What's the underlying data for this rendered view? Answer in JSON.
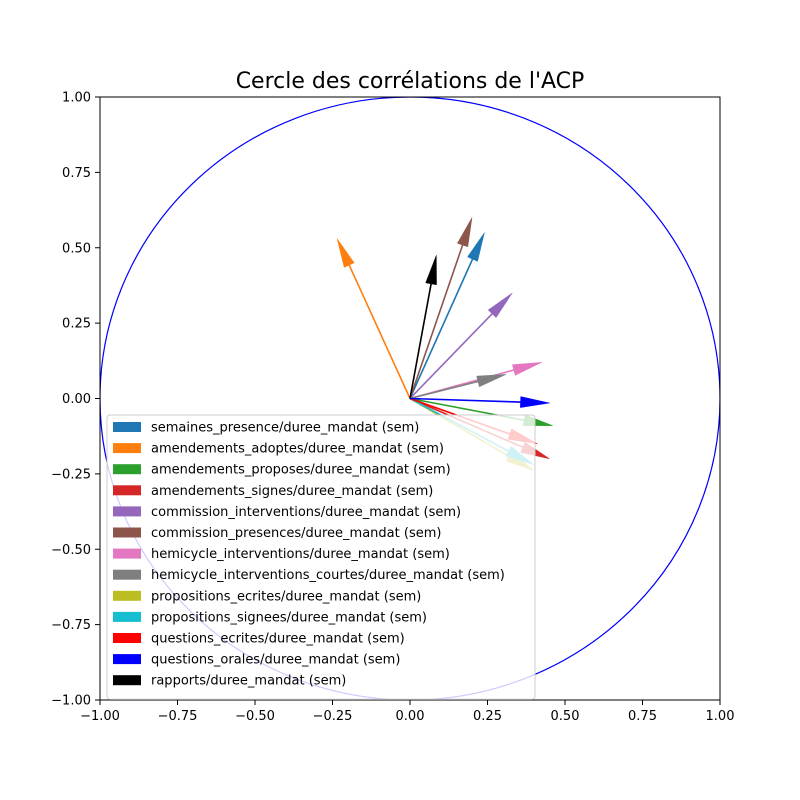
{
  "chart_data": {
    "type": "scatter",
    "title": "Cercle des corrélations de l'ACP",
    "xlabel": "",
    "ylabel": "",
    "xlim": [
      -1,
      1
    ],
    "ylim": [
      -1,
      1
    ],
    "grid": false,
    "legend_position": "lower-left",
    "circle": {
      "radius": 1,
      "color": "#0000ff"
    },
    "x_ticks": [
      "−1.00",
      "−0.75",
      "−0.50",
      "−0.25",
      "0.00",
      "0.25",
      "0.50",
      "0.75",
      "1.00"
    ],
    "y_ticks": [
      "−1.00",
      "−0.75",
      "−0.50",
      "−0.25",
      "0.00",
      "0.25",
      "0.50",
      "0.75",
      "1.00"
    ],
    "x_tick_values": [
      -1,
      -0.75,
      -0.5,
      -0.25,
      0,
      0.25,
      0.5,
      0.75,
      1
    ],
    "y_tick_values": [
      -1,
      -0.75,
      -0.5,
      -0.25,
      0,
      0.25,
      0.5,
      0.75,
      1
    ],
    "series": [
      {
        "name": "semaines_presence/duree_mandat (sem)",
        "color": "#1f77b4",
        "x": 0.24,
        "y": 0.55
      },
      {
        "name": "amendements_adoptes/duree_mandat (sem)",
        "color": "#ff7f0e",
        "x": -0.235,
        "y": 0.53
      },
      {
        "name": "amendements_proposes/duree_mandat (sem)",
        "color": "#2ca02c",
        "x": 0.46,
        "y": -0.09
      },
      {
        "name": "amendements_signes/duree_mandat (sem)",
        "color": "#d62728",
        "x": 0.45,
        "y": -0.2
      },
      {
        "name": "commission_interventions/duree_mandat (sem)",
        "color": "#9467bd",
        "x": 0.33,
        "y": 0.35
      },
      {
        "name": "commission_presences/duree_mandat (sem)",
        "color": "#8c564b",
        "x": 0.2,
        "y": 0.6
      },
      {
        "name": "hemicycle_interventions/duree_mandat (sem)",
        "color": "#e377c2",
        "x": 0.425,
        "y": 0.12
      },
      {
        "name": "hemicycle_interventions_courtes/duree_mandat (sem)",
        "color": "#7f7f7f",
        "x": 0.31,
        "y": 0.08
      },
      {
        "name": "propositions_ecrites/duree_mandat (sem)",
        "color": "#bcbd22",
        "x": 0.4,
        "y": -0.24
      },
      {
        "name": "propositions_signees/duree_mandat (sem)",
        "color": "#17becf",
        "x": 0.4,
        "y": -0.22
      },
      {
        "name": "questions_ecrites/duree_mandat (sem)",
        "color": "#ff0000",
        "x": 0.41,
        "y": -0.15
      },
      {
        "name": "questions_orales/duree_mandat (sem)",
        "color": "#0000ff",
        "x": 0.45,
        "y": -0.015
      },
      {
        "name": "rapports/duree_mandat (sem)",
        "color": "#000000",
        "x": 0.085,
        "y": 0.475
      }
    ]
  }
}
